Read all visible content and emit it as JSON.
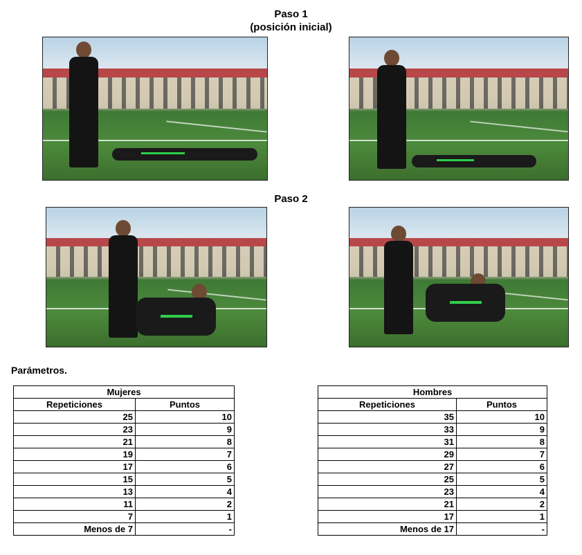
{
  "step1": {
    "title": "Paso 1",
    "subtitle": "(posición inicial)"
  },
  "step2": {
    "title": "Paso 2"
  },
  "photos": [
    {
      "id": "step1-left",
      "depicts": "man standing, woman lying"
    },
    {
      "id": "step1-right",
      "depicts": "woman standing, man lying"
    },
    {
      "id": "step2-left",
      "depicts": "man standing, woman sitting up"
    },
    {
      "id": "step2-right",
      "depicts": "woman standing, man sitting up"
    }
  ],
  "parameters_label": "Parámetros.",
  "tables": {
    "women": {
      "title": "Mujeres",
      "col_reps": "Repeticiones",
      "col_points": "Puntos",
      "rows": [
        {
          "reps": "25",
          "points": "10"
        },
        {
          "reps": "23",
          "points": "9"
        },
        {
          "reps": "21",
          "points": "8"
        },
        {
          "reps": "19",
          "points": "7"
        },
        {
          "reps": "17",
          "points": "6"
        },
        {
          "reps": "15",
          "points": "5"
        },
        {
          "reps": "13",
          "points": "4"
        },
        {
          "reps": "11",
          "points": "2"
        },
        {
          "reps": "7",
          "points": "1"
        },
        {
          "reps": "Menos de 7",
          "points": "-"
        }
      ]
    },
    "men": {
      "title": "Hombres",
      "col_reps": "Repeticiones",
      "col_points": "Puntos",
      "rows": [
        {
          "reps": "35",
          "points": "10"
        },
        {
          "reps": "33",
          "points": "9"
        },
        {
          "reps": "31",
          "points": "8"
        },
        {
          "reps": "29",
          "points": "7"
        },
        {
          "reps": "27",
          "points": "6"
        },
        {
          "reps": "25",
          "points": "5"
        },
        {
          "reps": "23",
          "points": "4"
        },
        {
          "reps": "21",
          "points": "2"
        },
        {
          "reps": "17",
          "points": "1"
        },
        {
          "reps": "Menos de 17",
          "points": "-"
        }
      ]
    }
  }
}
